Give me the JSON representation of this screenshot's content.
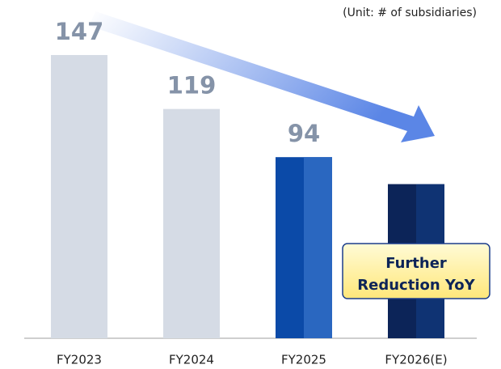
{
  "chart_data": {
    "type": "bar",
    "unit_note": "(Unit: # of subsidiaries)",
    "categories": [
      "FY2023",
      "FY2024",
      "FY2025",
      "FY2026(E)"
    ],
    "values": [
      147,
      119,
      94,
      80
    ],
    "value_labels": [
      "147",
      "119",
      "94",
      null
    ],
    "colors": [
      "#d5dbe5",
      "#d5dbe5",
      "#0b4aa8",
      "#0c2458"
    ],
    "highlight_colors": [
      null,
      null,
      "#2a67c0",
      "#0f3373"
    ],
    "annotation": [
      "Further",
      "Reduction YoY"
    ]
  }
}
